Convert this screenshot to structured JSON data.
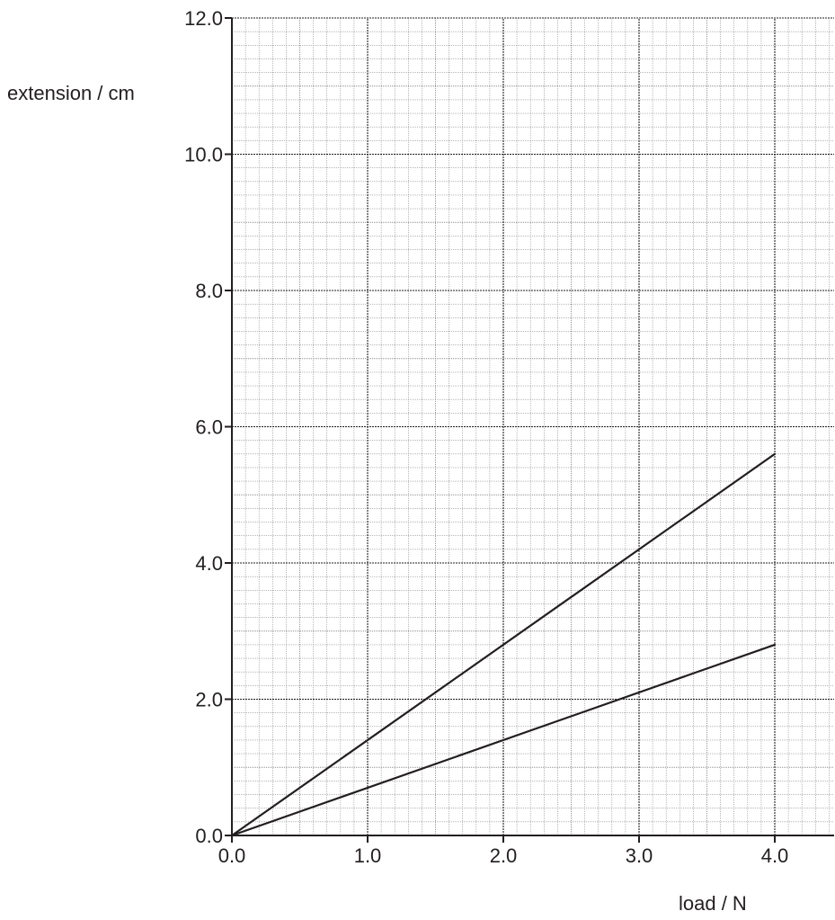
{
  "chart_data": {
    "type": "line",
    "xlabel": "load / N",
    "ylabel": "extension / cm",
    "xlim": [
      0,
      4.45
    ],
    "ylim": [
      0,
      12.0
    ],
    "x_ticks": [
      "0.0",
      "1.0",
      "2.0",
      "3.0",
      "4.0"
    ],
    "y_ticks": [
      "0.0",
      "2.0",
      "4.0",
      "6.0",
      "8.0",
      "10.0",
      "12.0"
    ],
    "grid": true,
    "grid_minor_step": [
      0.1,
      0.2
    ],
    "series": [
      {
        "x": [
          0.0,
          4.0
        ],
        "y": [
          0.0,
          5.6
        ]
      },
      {
        "x": [
          0.0,
          4.0
        ],
        "y": [
          0.0,
          2.8
        ]
      }
    ],
    "colors": {
      "line": "#231f20",
      "grid_minor": "#8a8a8a",
      "grid_major": "#231f20",
      "axis": "#231f20"
    }
  }
}
